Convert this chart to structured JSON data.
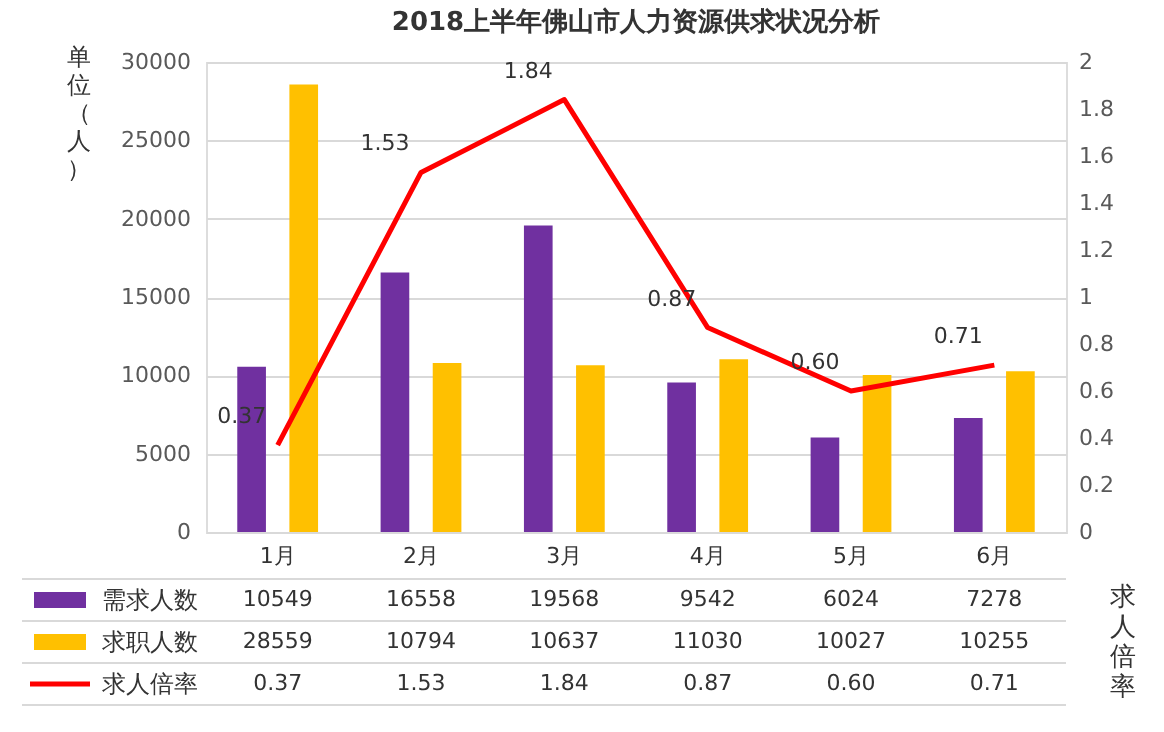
{
  "chart_data": {
    "type": "bar",
    "title": "2018上半年佛山市人力资源供求状况分析",
    "ylabel": "单位（人）",
    "y2label": "求人倍率",
    "categories": [
      "1月",
      "2月",
      "3月",
      "4月",
      "5月",
      "6月"
    ],
    "series": [
      {
        "name": "需求人数",
        "color": "#7030a0",
        "values": [
          10549,
          16558,
          19568,
          9542,
          6024,
          7278
        ]
      },
      {
        "name": "求职人数",
        "color": "#ffc000",
        "values": [
          28559,
          10794,
          10637,
          11030,
          10027,
          10255
        ]
      },
      {
        "name": "求人倍率",
        "type": "line",
        "axis": "y2",
        "color": "#ff0000",
        "values": [
          0.37,
          1.53,
          1.84,
          0.87,
          0.6,
          0.71
        ],
        "value_labels": [
          "0.37",
          "1.53",
          "1.84",
          "0.87",
          "0.60",
          "0.71"
        ]
      }
    ],
    "ylim": [
      0,
      30000
    ],
    "yticks": [
      0,
      5000,
      10000,
      15000,
      20000,
      25000,
      30000
    ],
    "y2lim": [
      0,
      2
    ],
    "y2ticks": [
      0,
      0.2,
      0.4,
      0.6,
      0.8,
      1,
      1.2,
      1.4,
      1.6,
      1.8,
      2
    ],
    "data_labels": true,
    "grid": "y",
    "legend": "bottom",
    "marker": "none",
    "line_style": "solid"
  }
}
